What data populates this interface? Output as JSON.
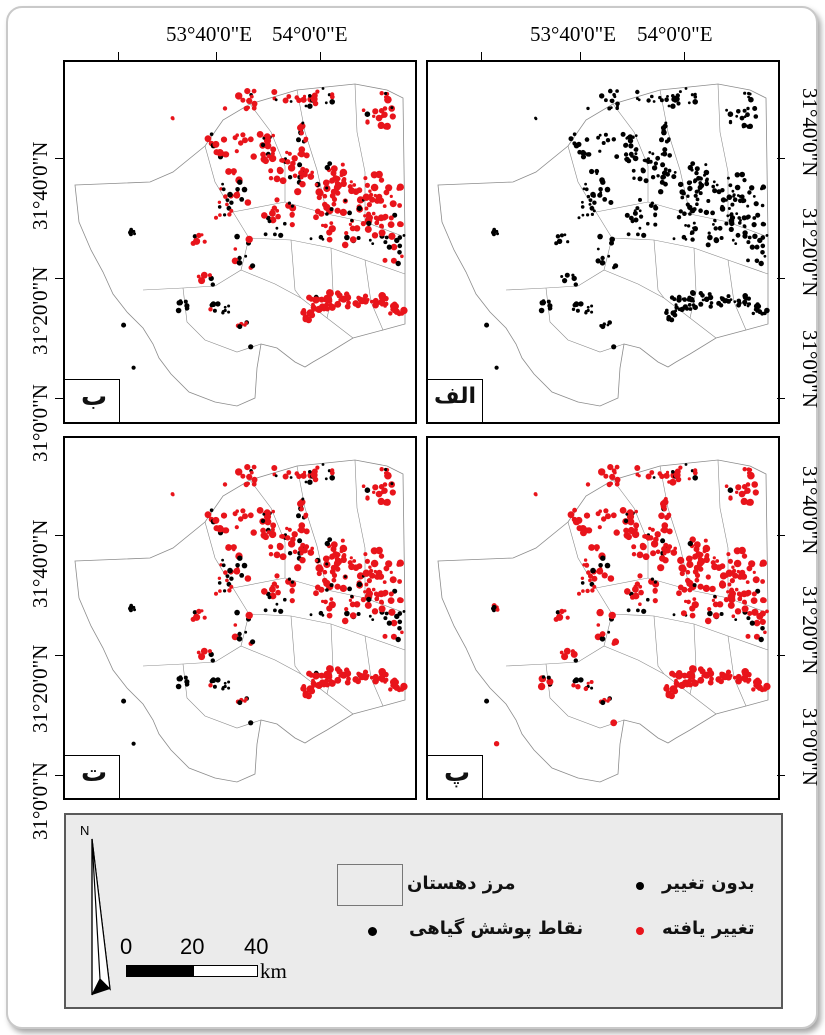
{
  "axes": {
    "lon_ticks": [
      "53°40'0\"E",
      "54°0'0\"E"
    ],
    "lat_ticks": [
      "31°40'0\"N",
      "31°20'0\"N",
      "31°0'0\"N"
    ]
  },
  "panels": [
    {
      "id": "alef",
      "label": "الف",
      "mode": "all-black"
    },
    {
      "id": "be",
      "label": "ب",
      "mode": "mixed"
    },
    {
      "id": "pe",
      "label": "پ",
      "mode": "mostly-red"
    },
    {
      "id": "te",
      "label": "ت",
      "mode": "mixed"
    }
  ],
  "legend": {
    "no_change": "بدون تغییر",
    "changed": "تغییر یافته",
    "boundary": "مرز دهستان",
    "vegetation_points": "نقاط پوشش گیاهی",
    "north": "N",
    "scale_numbers": [
      "0",
      "20",
      "40"
    ],
    "scale_unit": "km"
  },
  "colors": {
    "changed": "#e8141b",
    "no_change": "#000000",
    "boundary": "#8c8c8c",
    "legend_bg": "#ebebeb"
  }
}
